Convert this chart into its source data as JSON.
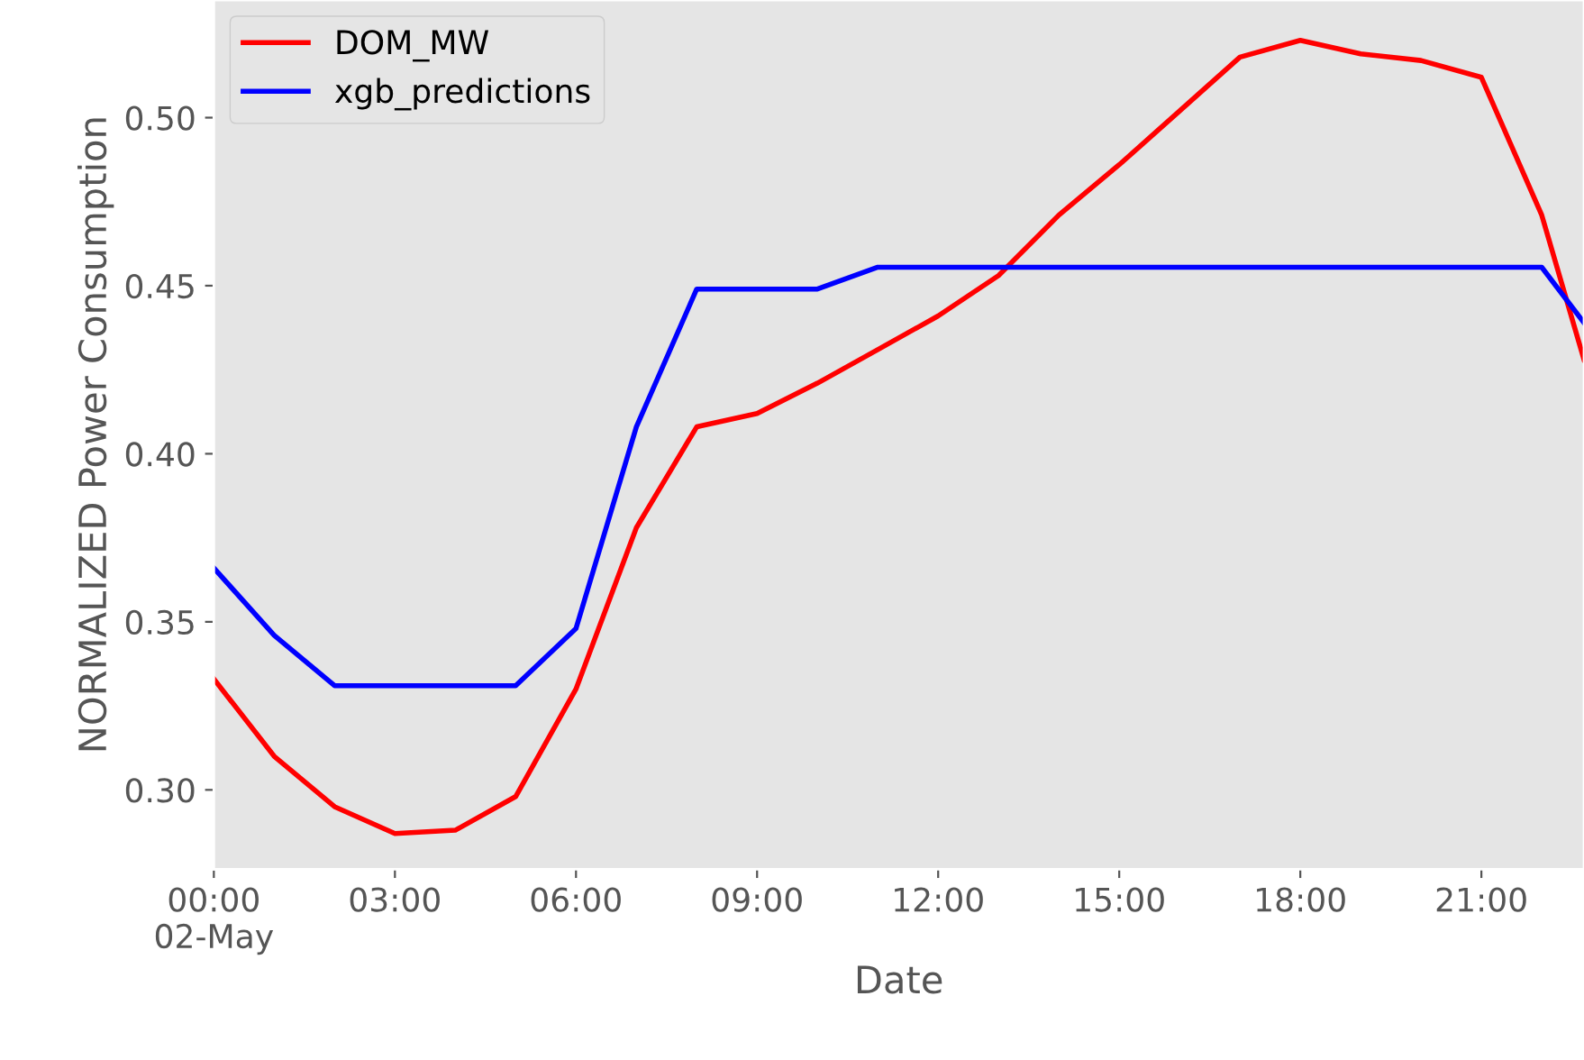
{
  "chart_data": {
    "type": "line",
    "xlabel": "Date",
    "ylabel": "NORMALIZED Power Consumption",
    "xlim": [
      0,
      22.7
    ],
    "ylim": [
      0.2764,
      0.535
    ],
    "xticks": [
      {
        "value": 0,
        "label": "00:00\n02-May"
      },
      {
        "value": 3,
        "label": "03:00"
      },
      {
        "value": 6,
        "label": "06:00"
      },
      {
        "value": 9,
        "label": "09:00"
      },
      {
        "value": 12,
        "label": "12:00"
      },
      {
        "value": 15,
        "label": "15:00"
      },
      {
        "value": 18,
        "label": "18:00"
      },
      {
        "value": 21,
        "label": "21:00"
      }
    ],
    "yticks": [
      {
        "value": 0.3,
        "label": "0.30"
      },
      {
        "value": 0.35,
        "label": "0.35"
      },
      {
        "value": 0.4,
        "label": "0.40"
      },
      {
        "value": 0.45,
        "label": "0.45"
      },
      {
        "value": 0.5,
        "label": "0.50"
      }
    ],
    "grid": false,
    "legend": "top left",
    "series": [
      {
        "name": "DOM_MW",
        "color": "#ff0000",
        "x": [
          0,
          1,
          2,
          3,
          4,
          5,
          6,
          7,
          8,
          9,
          10,
          11,
          12,
          13,
          14,
          15,
          16,
          17,
          18,
          19,
          20,
          21,
          22,
          22.7
        ],
        "values": [
          0.333,
          0.31,
          0.295,
          0.287,
          0.288,
          0.298,
          0.33,
          0.378,
          0.408,
          0.412,
          0.421,
          0.431,
          0.441,
          0.453,
          0.471,
          0.486,
          0.502,
          0.518,
          0.523,
          0.519,
          0.517,
          0.512,
          0.471,
          0.428
        ]
      },
      {
        "name": "xgb_predictions",
        "color": "#0000ff",
        "x": [
          0,
          1,
          2,
          3,
          4,
          5,
          6,
          7,
          8,
          9,
          10,
          11,
          12,
          13,
          14,
          15,
          16,
          17,
          18,
          19,
          20,
          21,
          22,
          22.7
        ],
        "values": [
          0.366,
          0.346,
          0.331,
          0.331,
          0.331,
          0.331,
          0.348,
          0.408,
          0.449,
          0.449,
          0.449,
          0.4555,
          0.4555,
          0.4555,
          0.4555,
          0.4555,
          0.4555,
          0.4555,
          0.4555,
          0.4555,
          0.4555,
          0.4555,
          0.4555,
          0.439
        ]
      }
    ]
  }
}
